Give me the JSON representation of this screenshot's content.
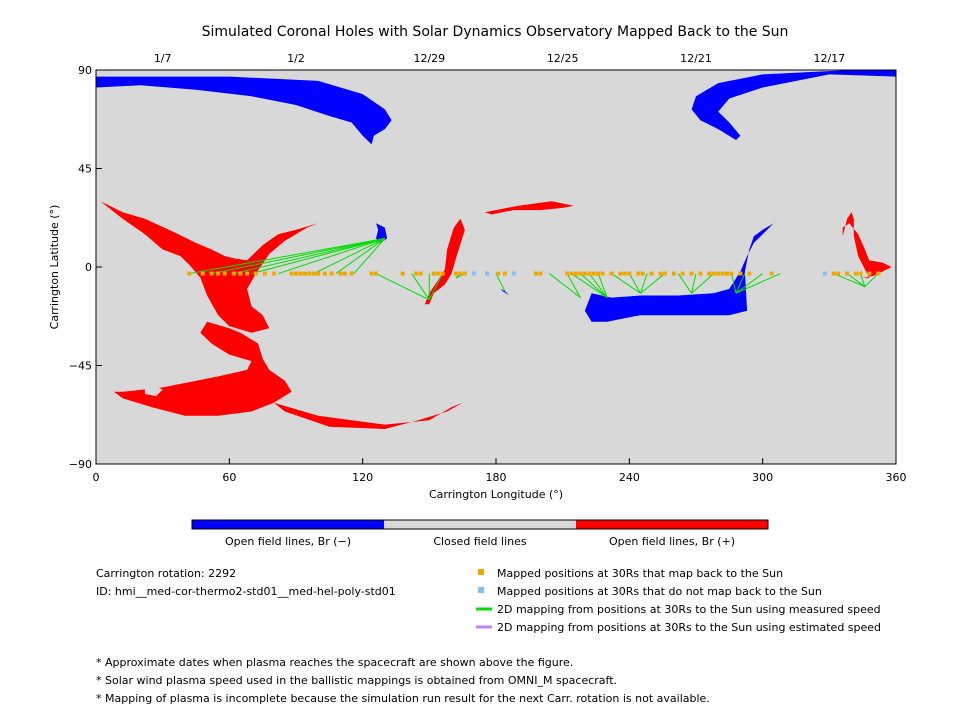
{
  "chart_data": {
    "type": "scatter",
    "title": "Simulated Coronal Holes with Solar Dynamics Observatory Mapped Back to the Sun",
    "xlabel": "Carrington Longitude (°)",
    "ylabel": "Carrington Latitude (°)",
    "xlim": [
      0,
      360
    ],
    "ylim": [
      -90,
      90
    ],
    "x_ticks": [
      0,
      60,
      120,
      180,
      240,
      300,
      360
    ],
    "y_ticks": [
      -90,
      -45,
      0,
      45,
      90
    ],
    "date_ticks": [
      {
        "label": "1/7",
        "lon": 30
      },
      {
        "label": "1/2",
        "lon": 90
      },
      {
        "label": "12/29",
        "lon": 150
      },
      {
        "label": "12/25",
        "lon": 210
      },
      {
        "label": "12/21",
        "lon": 270
      },
      {
        "label": "12/17",
        "lon": 330
      }
    ],
    "colorbar": {
      "segments": [
        {
          "label": "Open field lines, Br (−)",
          "color": "#0000ff"
        },
        {
          "label": "Closed field lines",
          "color": "#d8d8d8"
        },
        {
          "label": "Open field lines, Br (+)",
          "color": "#ff0000"
        }
      ]
    },
    "colors": {
      "background": "#d8d8d8",
      "negative": "#0000ff",
      "positive": "#ff0000",
      "mapped": "#f0a800",
      "unmapped": "#80c0f0",
      "measured_line": "#00dd00",
      "estimated_line": "#c080ff"
    },
    "mapped_points_lon": [
      42,
      48,
      52,
      55,
      58,
      62,
      65,
      68,
      72,
      76,
      80,
      88,
      90,
      92,
      94,
      96,
      98,
      100,
      103,
      106,
      110,
      112,
      115,
      124,
      126,
      138,
      144,
      146,
      152,
      154,
      156,
      162,
      164,
      166,
      181,
      184,
      198,
      200,
      212,
      214,
      216,
      218,
      220,
      222,
      224,
      226,
      228,
      232,
      236,
      238,
      240,
      244,
      246,
      250,
      254,
      256,
      260,
      264,
      268,
      272,
      276,
      278,
      280,
      282,
      284,
      286,
      290,
      294,
      304,
      332,
      334,
      338,
      342,
      344,
      348,
      352
    ],
    "mapped_points_lat": -3,
    "unmapped_points_lon": [
      170,
      176,
      188,
      328
    ],
    "measured_mappings": [
      {
        "target": [
          130,
          13
        ],
        "sources": [
          42,
          52,
          62,
          70,
          82,
          98,
          108,
          116
        ]
      },
      {
        "target": [
          150,
          -15
        ],
        "sources": [
          126,
          142,
          150,
          156
        ]
      },
      {
        "target": [
          162,
          -5
        ],
        "sources": [
          164,
          166
        ]
      },
      {
        "target": [
          184,
          -11
        ],
        "sources": [
          180
        ]
      },
      {
        "target": [
          218,
          -14
        ],
        "sources": [
          204,
          212
        ]
      },
      {
        "target": [
          230,
          -14
        ],
        "sources": [
          214,
          218,
          222,
          226
        ]
      },
      {
        "target": [
          245,
          -12
        ],
        "sources": [
          232,
          240,
          248,
          256
        ]
      },
      {
        "target": [
          268,
          -12
        ],
        "sources": [
          262,
          270,
          278
        ]
      },
      {
        "target": [
          288,
          -12
        ],
        "sources": [
          286,
          292,
          300,
          308
        ]
      },
      {
        "target": [
          346,
          -9
        ],
        "sources": [
          332,
          338,
          344,
          352
        ]
      }
    ],
    "coronal_holes": [
      {
        "polarity": "negative",
        "outline": [
          [
            0,
            90
          ],
          [
            0,
            82
          ],
          [
            20,
            83
          ],
          [
            45,
            81
          ],
          [
            70,
            78
          ],
          [
            90,
            74
          ],
          [
            105,
            69
          ],
          [
            115,
            66
          ],
          [
            120,
            60
          ],
          [
            124,
            56
          ],
          [
            125,
            60
          ],
          [
            130,
            63
          ],
          [
            133,
            67
          ],
          [
            130,
            72
          ],
          [
            120,
            79
          ],
          [
            100,
            85
          ],
          [
            60,
            87
          ],
          [
            0,
            87
          ]
        ]
      },
      {
        "polarity": "negative",
        "outline": [
          [
            360,
            90
          ],
          [
            360,
            87
          ],
          [
            330,
            88
          ],
          [
            300,
            82
          ],
          [
            285,
            77
          ],
          [
            280,
            71
          ],
          [
            285,
            66
          ],
          [
            290,
            60
          ],
          [
            288,
            58
          ],
          [
            280,
            63
          ],
          [
            272,
            67
          ],
          [
            268,
            72
          ],
          [
            270,
            78
          ],
          [
            280,
            84
          ],
          [
            300,
            88
          ],
          [
            340,
            90
          ]
        ]
      },
      {
        "polarity": "negative",
        "outline": [
          [
            126,
            20
          ],
          [
            130,
            18
          ],
          [
            131,
            13
          ],
          [
            128,
            11
          ],
          [
            126,
            13
          ],
          [
            127,
            17
          ]
        ]
      },
      {
        "polarity": "negative",
        "outline": [
          [
            223,
            -12
          ],
          [
            232,
            -14
          ],
          [
            245,
            -13
          ],
          [
            262,
            -13
          ],
          [
            278,
            -12
          ],
          [
            285,
            -10
          ],
          [
            290,
            -2
          ],
          [
            293,
            5
          ],
          [
            296,
            11
          ],
          [
            300,
            15
          ],
          [
            307,
            22
          ],
          [
            305,
            20
          ],
          [
            300,
            17
          ],
          [
            296,
            14
          ],
          [
            294,
            8
          ],
          [
            292,
            -2
          ],
          [
            293,
            -20
          ],
          [
            285,
            -22
          ],
          [
            265,
            -22
          ],
          [
            245,
            -22
          ],
          [
            230,
            -25
          ],
          [
            223,
            -25
          ],
          [
            220,
            -20
          ]
        ]
      },
      {
        "polarity": "negative",
        "outline": [
          [
            182,
            -10
          ],
          [
            184,
            -11
          ],
          [
            186,
            -13
          ],
          [
            183,
            -11
          ]
        ]
      },
      {
        "polarity": "positive",
        "outline": [
          [
            2,
            30
          ],
          [
            12,
            25
          ],
          [
            22,
            22
          ],
          [
            35,
            16
          ],
          [
            45,
            11
          ],
          [
            52,
            8
          ],
          [
            58,
            5
          ],
          [
            62,
            4
          ],
          [
            68,
            3
          ],
          [
            75,
            10
          ],
          [
            82,
            15
          ],
          [
            90,
            17
          ],
          [
            100,
            20
          ],
          [
            95,
            18
          ],
          [
            85,
            12
          ],
          [
            78,
            6
          ],
          [
            72,
            -3
          ],
          [
            68,
            -10
          ],
          [
            70,
            -18
          ],
          [
            75,
            -22
          ],
          [
            78,
            -28
          ],
          [
            70,
            -30
          ],
          [
            60,
            -27
          ],
          [
            55,
            -22
          ],
          [
            50,
            -13
          ],
          [
            47,
            -5
          ],
          [
            42,
            1
          ],
          [
            38,
            5
          ],
          [
            30,
            8
          ],
          [
            22,
            15
          ],
          [
            12,
            22
          ]
        ]
      },
      {
        "polarity": "positive",
        "outline": [
          [
            50,
            -25
          ],
          [
            47,
            -30
          ],
          [
            52,
            -35
          ],
          [
            60,
            -40
          ],
          [
            70,
            -43
          ],
          [
            68,
            -47
          ],
          [
            55,
            -50
          ],
          [
            40,
            -53
          ],
          [
            30,
            -55
          ],
          [
            12,
            -57
          ],
          [
            8,
            -57
          ],
          [
            12,
            -60
          ],
          [
            25,
            -64
          ],
          [
            40,
            -68
          ],
          [
            55,
            -68
          ],
          [
            70,
            -66
          ],
          [
            80,
            -62
          ],
          [
            88,
            -57
          ],
          [
            85,
            -52
          ],
          [
            78,
            -47
          ],
          [
            75,
            -42
          ],
          [
            73,
            -35
          ],
          [
            65,
            -30
          ],
          [
            60,
            -28
          ]
        ]
      },
      {
        "polarity": "positive",
        "outline": [
          [
            80,
            -62
          ],
          [
            100,
            -68
          ],
          [
            130,
            -72
          ],
          [
            150,
            -70
          ],
          [
            160,
            -64
          ],
          [
            165,
            -62
          ],
          [
            158,
            -66
          ],
          [
            145,
            -70
          ],
          [
            130,
            -74
          ],
          [
            105,
            -73
          ],
          [
            85,
            -66
          ]
        ]
      },
      {
        "polarity": "positive",
        "outline": [
          [
            164,
            22
          ],
          [
            166,
            17
          ],
          [
            162,
            4
          ],
          [
            160,
            -3
          ],
          [
            157,
            -8
          ],
          [
            152,
            -12
          ],
          [
            150,
            -17
          ],
          [
            148,
            -17
          ],
          [
            150,
            -12
          ],
          [
            154,
            -6
          ],
          [
            157,
            -1
          ],
          [
            158,
            8
          ],
          [
            161,
            18
          ]
        ]
      },
      {
        "polarity": "positive",
        "outline": [
          [
            175,
            25
          ],
          [
            190,
            28
          ],
          [
            205,
            30
          ],
          [
            215,
            28
          ],
          [
            210,
            27
          ],
          [
            200,
            26
          ],
          [
            188,
            26
          ],
          [
            178,
            24
          ]
        ]
      },
      {
        "polarity": "positive",
        "outline": [
          [
            338,
            22
          ],
          [
            340,
            25
          ],
          [
            341,
            22
          ],
          [
            341,
            14
          ],
          [
            343,
            5
          ],
          [
            346,
            -1
          ],
          [
            348,
            -5
          ],
          [
            345,
            -5
          ],
          [
            350,
            -4
          ],
          [
            356,
            -1
          ],
          [
            358,
            0
          ],
          [
            354,
            2
          ],
          [
            348,
            3
          ],
          [
            346,
            8
          ],
          [
            343,
            15
          ],
          [
            339,
            20
          ],
          [
            336,
            18
          ],
          [
            336,
            14
          ]
        ]
      }
    ],
    "holes_hole_in_pos": [
      [
        22,
        -55
      ],
      [
        26,
        -54
      ],
      [
        30,
        -56
      ],
      [
        27,
        -59
      ],
      [
        22,
        -58
      ]
    ]
  },
  "info": {
    "carrington_rotation": "Carrington rotation: 2292",
    "run_id": "ID: hmi__med-cor-thermo2-std01__med-hel-poly-std01"
  },
  "legend": {
    "mapped": "Mapped positions at 30Rs that map back to the Sun",
    "unmapped": "Mapped positions at 30Rs that do not map back to the Sun",
    "measured": "2D mapping from positions at 30Rs to the Sun using measured speed",
    "estimated": "2D mapping from positions at 30Rs to the Sun using estimated speed"
  },
  "notes": [
    "* Approximate dates when plasma reaches the spacecraft are shown above the figure.",
    "* Solar wind plasma speed used in the ballistic mappings is obtained from OMNI_M spacecraft.",
    "* Mapping of plasma is incomplete because the simulation run result for the next Carr. rotation is not available."
  ]
}
